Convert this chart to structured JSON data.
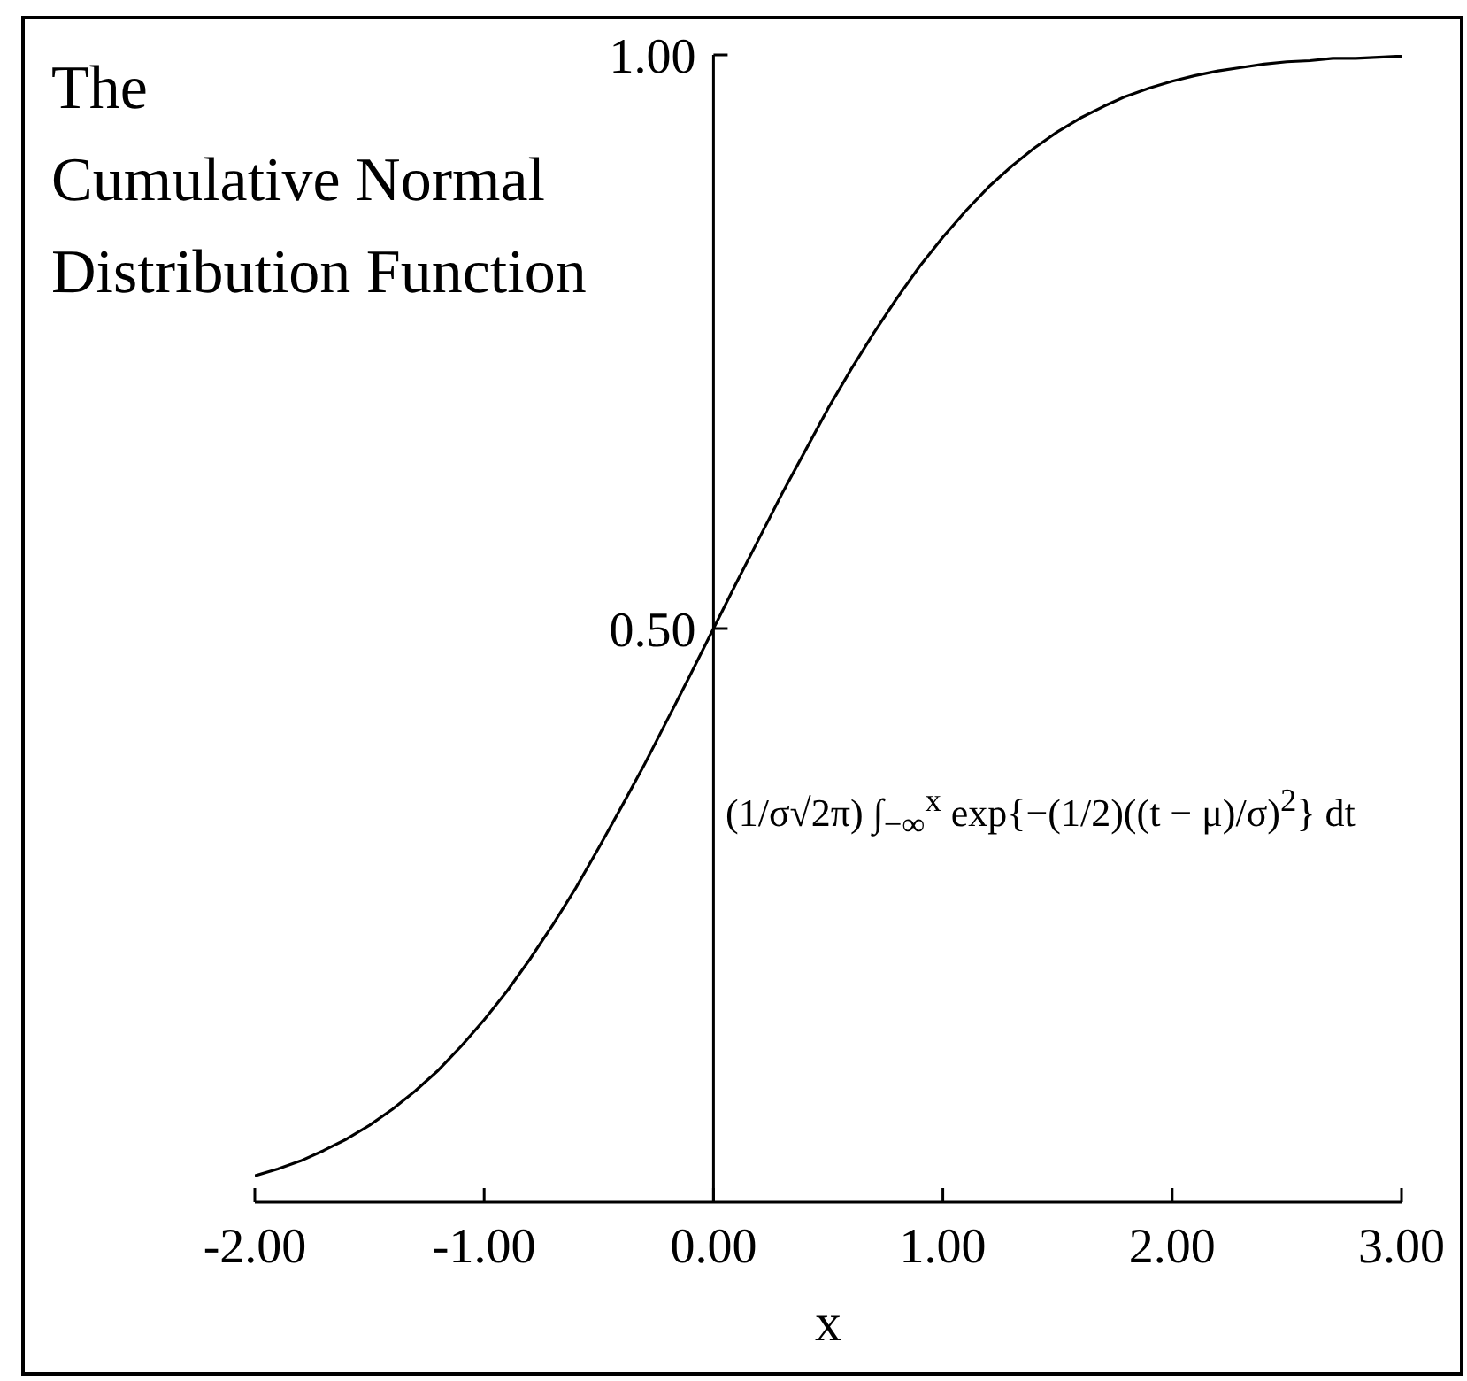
{
  "chart_data": {
    "type": "line",
    "title": "The\nCumulative Normal\nDistribution Function",
    "xlabel": "x",
    "annotations": [
      "(1/σ√2π) ∫$_{−∞}$$^{x}$ exp{−(1/2)((t − μ)/σ)$^{2}$} dt"
    ],
    "x": [
      -2,
      -1.9,
      -1.8,
      -1.7,
      -1.6,
      -1.5,
      -1.4,
      -1.3,
      -1.2,
      -1.1,
      -1,
      -0.9,
      -0.8,
      -0.7,
      -0.6,
      -0.5,
      -0.4,
      -0.3,
      -0.2,
      -0.1,
      0,
      0.1,
      0.2,
      0.3,
      0.4,
      0.5,
      0.6,
      0.7,
      0.8,
      0.9,
      1,
      1.1,
      1.2,
      1.3,
      1.4,
      1.5,
      1.6,
      1.7,
      1.8,
      1.9,
      2,
      2.1,
      2.2,
      2.3,
      2.4,
      2.5,
      2.6,
      2.7,
      2.8,
      2.9,
      3
    ],
    "series": [
      {
        "color": "#000000",
        "values": [
          0.023,
          0.029,
          0.036,
          0.045,
          0.055,
          0.067,
          0.081,
          0.097,
          0.115,
          0.136,
          0.159,
          0.184,
          0.212,
          0.242,
          0.274,
          0.309,
          0.345,
          0.382,
          0.421,
          0.46,
          0.5,
          0.54,
          0.579,
          0.618,
          0.655,
          0.692,
          0.726,
          0.758,
          0.788,
          0.816,
          0.841,
          0.864,
          0.885,
          0.903,
          0.919,
          0.933,
          0.945,
          0.955,
          0.964,
          0.971,
          0.977,
          0.982,
          0.986,
          0.989,
          0.992,
          0.994,
          0.995,
          0.997,
          0.997,
          0.998,
          0.999
        ]
      }
    ],
    "xlim": [
      -2,
      3
    ],
    "ylim": [
      0,
      1
    ],
    "xticks": [
      {
        "value": -2,
        "label": "-2.00"
      },
      {
        "value": -1,
        "label": "-1.00"
      },
      {
        "value": 0,
        "label": "0.00"
      },
      {
        "value": 1,
        "label": "1.00"
      },
      {
        "value": 2,
        "label": "2.00"
      },
      {
        "value": 3,
        "label": "3.00"
      }
    ],
    "yticks": [
      {
        "value": 0.5,
        "label": "0.50"
      },
      {
        "value": 1,
        "label": "1.00"
      }
    ]
  }
}
